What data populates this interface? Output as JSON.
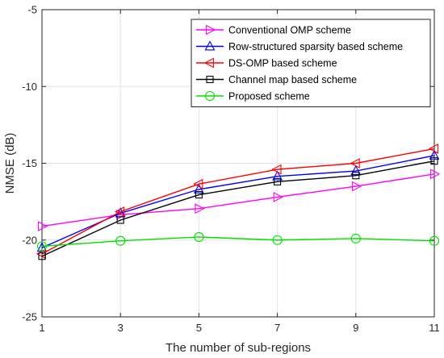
{
  "chart_data": {
    "type": "line",
    "title": "",
    "xlabel": "The number of sub-regions",
    "ylabel": "NMSE (dB)",
    "x": [
      1,
      3,
      5,
      7,
      9,
      11
    ],
    "xticks": [
      1,
      3,
      5,
      7,
      9,
      11
    ],
    "xlim": [
      1,
      11
    ],
    "yticks": [
      -25,
      -20,
      -15,
      -10,
      -5
    ],
    "ylim": [
      -25,
      -5
    ],
    "grid": true,
    "legend_position": "top-right",
    "series": [
      {
        "name": "Conventional OMP scheme",
        "color": "#ff00ff",
        "marker": "triangle-right",
        "values": [
          -19.1,
          -18.35,
          -17.95,
          -17.2,
          -16.5,
          -15.7
        ]
      },
      {
        "name": "Row-structured sparsity based scheme",
        "color": "#0000ff",
        "marker": "triangle-up",
        "values": [
          -20.5,
          -18.25,
          -16.7,
          -15.85,
          -15.5,
          -14.5
        ]
      },
      {
        "name": "DS-OMP based scheme",
        "color": "#ff0000",
        "marker": "triangle-left",
        "values": [
          -20.9,
          -18.15,
          -16.35,
          -15.4,
          -15.0,
          -14.05
        ]
      },
      {
        "name": "Channel map based scheme",
        "color": "#000000",
        "marker": "square",
        "values": [
          -21.05,
          -18.7,
          -17.05,
          -16.2,
          -15.8,
          -14.85
        ]
      },
      {
        "name": "Proposed scheme",
        "color": "#00e000",
        "marker": "circle",
        "values": [
          -20.4,
          -20.05,
          -19.8,
          -20.0,
          -19.9,
          -20.05
        ]
      }
    ]
  }
}
